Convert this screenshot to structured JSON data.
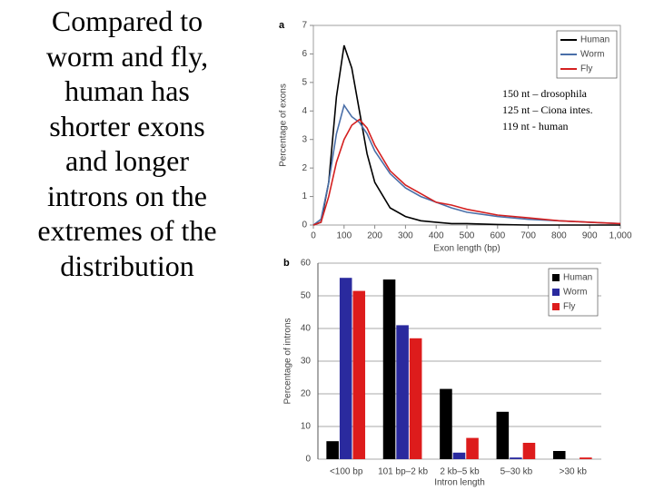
{
  "slide_text_lines": [
    "Compared to",
    "worm and fly,",
    "human has",
    "shorter exons",
    "and longer",
    "introns on the",
    "extremes of the",
    "distribution"
  ],
  "chart_data": [
    {
      "type": "line",
      "panel_label": "a",
      "x_label": "Exon length (bp)",
      "y_label": "Percentage of exons",
      "x": [
        0,
        25,
        50,
        75,
        100,
        125,
        150,
        175,
        200,
        250,
        300,
        350,
        400,
        450,
        500,
        600,
        700,
        800,
        900,
        1000
      ],
      "series": [
        {
          "name": "Human",
          "color": "#000000",
          "values": [
            0,
            0.1,
            1.5,
            4.5,
            6.3,
            5.5,
            4.0,
            2.5,
            1.5,
            0.6,
            0.3,
            0.15,
            0.1,
            0.05,
            0.05,
            0.02,
            0,
            0,
            0,
            0
          ]
        },
        {
          "name": "Worm",
          "color": "#4a6fa8",
          "values": [
            0,
            0.2,
            1.5,
            3.2,
            4.2,
            3.8,
            3.6,
            3.2,
            2.6,
            1.8,
            1.3,
            1.0,
            0.8,
            0.6,
            0.45,
            0.3,
            0.2,
            0.15,
            0.1,
            0.05
          ]
        },
        {
          "name": "Fly",
          "color": "#d42020",
          "values": [
            0,
            0.1,
            1.0,
            2.2,
            3.0,
            3.5,
            3.7,
            3.4,
            2.8,
            1.9,
            1.4,
            1.1,
            0.8,
            0.7,
            0.55,
            0.35,
            0.25,
            0.15,
            0.1,
            0.05
          ]
        }
      ],
      "xlim": [
        0,
        1000
      ],
      "xticks": [
        0,
        100,
        200,
        300,
        400,
        500,
        600,
        700,
        800,
        900,
        {
          "value": 1000,
          "label": "1,000"
        }
      ],
      "ylim": [
        0,
        7
      ],
      "yticks": [
        0,
        1,
        2,
        3,
        4,
        5,
        6,
        7
      ],
      "grid": false,
      "legend": "top-right",
      "annotations": [
        "150 nt – drosophila",
        "125 nt – Ciona intes.",
        "119 nt - human"
      ]
    },
    {
      "type": "bar",
      "panel_label": "b",
      "x_label": "Intron length",
      "y_label": "Percentage of introns",
      "categories": [
        "<100 bp",
        "101 bp–2 kb",
        "2 kb–5 kb",
        "5–30 kb",
        ">30 kb"
      ],
      "series": [
        {
          "name": "Human",
          "color": "#000000",
          "values": [
            5.5,
            55,
            21.5,
            14.5,
            2.5
          ]
        },
        {
          "name": "Worm",
          "color": "#2a2a9e",
          "values": [
            55.5,
            41,
            2,
            0.5,
            0
          ]
        },
        {
          "name": "Fly",
          "color": "#dd1c1c",
          "values": [
            51.5,
            37,
            6.5,
            5,
            0.5
          ]
        }
      ],
      "ylim": [
        0,
        60
      ],
      "yticks": [
        0,
        10,
        20,
        30,
        40,
        50,
        60
      ],
      "grid": true,
      "legend": "top-right"
    }
  ]
}
